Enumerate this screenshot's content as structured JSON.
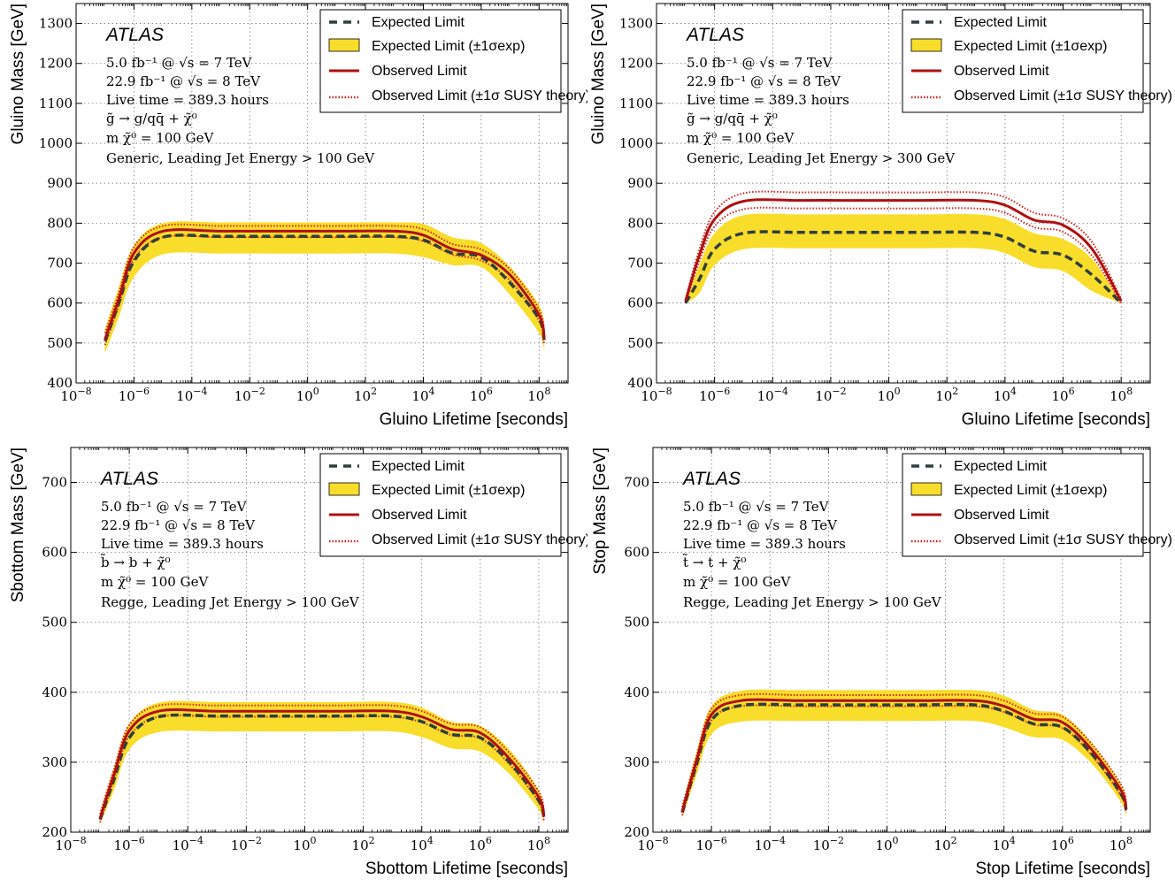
{
  "colors": {
    "band": "#f9dd2b",
    "expected": "#2f3f3f",
    "observed": "#b01010",
    "theory": "#d42020",
    "grid": "#777777"
  },
  "chart_data": [
    {
      "type": "line",
      "xscale": "log",
      "xlim": [
        1e-08,
        1000000000.0
      ],
      "ylim": [
        400,
        1350
      ],
      "xlabel": "Gluino Lifetime [seconds]",
      "ylabel": "Gluino Mass [GeV]",
      "yticks": [
        "400",
        "500",
        "600",
        "700",
        "800",
        "900",
        "1000",
        "1100",
        "1200",
        "1300"
      ],
      "ytick_values": [
        400,
        500,
        600,
        700,
        800,
        900,
        1000,
        1100,
        1200,
        1300
      ],
      "xticks": [
        "10^-8",
        "10^-6",
        "10^-4",
        "10^-2",
        "10^0",
        "10^2",
        "10^4",
        "10^6",
        "10^8"
      ],
      "grid": true,
      "legend_position": "top-right",
      "annotation": {
        "experiment": "ATLAS",
        "lumi_7": "5.0  fb⁻¹ @ √s = 7 TeV",
        "lumi_8": "22.9 fb⁻¹ @ √s = 8 TeV",
        "live_time": "Live time = 389.3 hours",
        "decay": "g̃ →  g/qq̄ + χ̃⁰",
        "lsp_mass": "m χ̃⁰ = 100 GeV",
        "model": "Generic,  Leading Jet Energy > 100 GeV"
      },
      "legend": [
        "Expected Limit",
        "Expected Limit (±1σexp)",
        "Observed Limit",
        "Observed Limit (±1σ SUSY theory)"
      ],
      "x": [
        1e-07,
        3e-07,
        1e-06,
        1e-05,
        0.001,
        0.1,
        10.0,
        1000.0,
        10000.0,
        100000.0,
        1000000.0,
        10000000.0,
        100000000.0,
        150000000.0
      ],
      "series": [
        {
          "name": "Expected Limit",
          "values": [
            505,
            600,
            705,
            765,
            767,
            767,
            767,
            767,
            758,
            725,
            715,
            650,
            560,
            505
          ]
        },
        {
          "name": "Expected Limit (±1σexp)",
          "low": [
            475,
            565,
            665,
            722,
            724,
            724,
            724,
            724,
            715,
            695,
            690,
            620,
            525,
            478
          ],
          "high": [
            535,
            640,
            745,
            800,
            802,
            802,
            802,
            802,
            798,
            765,
            750,
            690,
            595,
            535
          ]
        },
        {
          "name": "Observed Limit",
          "values": [
            510,
            610,
            725,
            780,
            780,
            780,
            780,
            780,
            770,
            735,
            720,
            670,
            570,
            510
          ]
        },
        {
          "name": "Observed Limit (±1σ SUSY theory)",
          "low": [
            495,
            595,
            710,
            765,
            765,
            765,
            765,
            765,
            755,
            722,
            706,
            656,
            556,
            495
          ],
          "high": [
            525,
            625,
            740,
            793,
            793,
            793,
            793,
            793,
            785,
            748,
            734,
            684,
            584,
            525
          ]
        }
      ]
    },
    {
      "type": "line",
      "xscale": "log",
      "xlim": [
        1e-08,
        1000000000.0
      ],
      "ylim": [
        400,
        1350
      ],
      "xlabel": "Gluino Lifetime [seconds]",
      "ylabel": "Gluino Mass [GeV]",
      "yticks": [
        "400",
        "500",
        "600",
        "700",
        "800",
        "900",
        "1000",
        "1100",
        "1200",
        "1300"
      ],
      "ytick_values": [
        400,
        500,
        600,
        700,
        800,
        900,
        1000,
        1100,
        1200,
        1300
      ],
      "xticks": [
        "10^-8",
        "10^-6",
        "10^-4",
        "10^-2",
        "10^0",
        "10^2",
        "10^4",
        "10^6",
        "10^8"
      ],
      "grid": true,
      "legend_position": "top-right",
      "annotation": {
        "experiment": "ATLAS",
        "lumi_7": "5.0  fb⁻¹ @ √s = 7 TeV",
        "lumi_8": "22.9 fb⁻¹ @ √s = 8 TeV",
        "live_time": "Live time = 389.3 hours",
        "decay": "g̃ →  g/qq̄ + χ̃⁰",
        "lsp_mass": "m χ̃⁰ = 100 GeV",
        "model": "Generic,  Leading Jet Energy > 300 GeV"
      },
      "legend": [
        "Expected Limit",
        "Expected Limit (±1σexp)",
        "Observed Limit",
        "Observed Limit (±1σ SUSY theory)"
      ],
      "x": [
        1e-07,
        3e-07,
        1e-06,
        1e-05,
        0.001,
        0.1,
        10.0,
        1000.0,
        10000.0,
        100000.0,
        1000000.0,
        10000000.0,
        100000000.0
      ],
      "series": [
        {
          "name": "Expected Limit",
          "values": [
            600,
            660,
            735,
            775,
            777,
            777,
            777,
            777,
            765,
            730,
            720,
            670,
            600
          ]
        },
        {
          "name": "Expected Limit (±1σexp)",
          "low": [
            600,
            625,
            695,
            735,
            737,
            737,
            737,
            737,
            725,
            690,
            680,
            630,
            600
          ],
          "high": [
            600,
            695,
            775,
            820,
            822,
            822,
            822,
            822,
            810,
            775,
            760,
            710,
            600
          ]
        },
        {
          "name": "Observed Limit",
          "values": [
            605,
            720,
            810,
            855,
            857,
            857,
            857,
            857,
            845,
            808,
            795,
            735,
            605
          ]
        },
        {
          "name": "Observed Limit (±1σ SUSY theory)",
          "low": [
            600,
            705,
            792,
            835,
            837,
            837,
            837,
            837,
            826,
            790,
            778,
            718,
            600
          ],
          "high": [
            610,
            735,
            828,
            875,
            877,
            877,
            877,
            877,
            865,
            826,
            812,
            752,
            610
          ]
        }
      ]
    },
    {
      "type": "line",
      "xscale": "log",
      "xlim": [
        1e-08,
        1000000000.0
      ],
      "ylim": [
        200,
        750
      ],
      "xlabel": "Sbottom Lifetime [seconds]",
      "ylabel": "Sbottom Mass [GeV]",
      "yticks": [
        "200",
        "300",
        "400",
        "500",
        "600",
        "700"
      ],
      "ytick_values": [
        200,
        300,
        400,
        500,
        600,
        700
      ],
      "xticks": [
        "10^-8",
        "10^-6",
        "10^-4",
        "10^-2",
        "10^0",
        "10^2",
        "10^4",
        "10^6",
        "10^8"
      ],
      "grid": true,
      "legend_position": "top-right",
      "annotation": {
        "experiment": "ATLAS",
        "lumi_7": "5.0  fb⁻¹ @ √s = 7 TeV",
        "lumi_8": "22.9 fb⁻¹ @ √s = 8 TeV",
        "live_time": "Live time = 389.3 hours",
        "decay": "b̃ →  b + χ̃⁰",
        "lsp_mass": "m χ̃⁰ = 100 GeV",
        "model": "Regge,  Leading Jet Energy > 100 GeV"
      },
      "legend": [
        "Expected Limit",
        "Expected Limit (±1σexp)",
        "Observed Limit",
        "Observed Limit (±1σ SUSY theory)"
      ],
      "x": [
        1e-07,
        3e-07,
        1e-06,
        1e-05,
        0.001,
        0.1,
        10.0,
        1000.0,
        10000.0,
        100000.0,
        1000000.0,
        10000000.0,
        100000000.0,
        150000000.0
      ],
      "series": [
        {
          "name": "Expected Limit",
          "values": [
            218,
            275,
            335,
            365,
            366,
            366,
            366,
            366,
            358,
            340,
            335,
            300,
            245,
            220
          ]
        },
        {
          "name": "Expected Limit (±1σexp)",
          "low": [
            212,
            260,
            318,
            343,
            344,
            344,
            344,
            344,
            336,
            320,
            315,
            283,
            232,
            212
          ],
          "high": [
            228,
            292,
            355,
            385,
            386,
            386,
            386,
            386,
            378,
            358,
            352,
            318,
            260,
            228
          ]
        },
        {
          "name": "Observed Limit",
          "values": [
            220,
            282,
            345,
            373,
            373,
            373,
            373,
            373,
            365,
            347,
            342,
            305,
            250,
            222
          ]
        },
        {
          "name": "Observed Limit (±1σ SUSY theory)",
          "low": [
            214,
            275,
            337,
            365,
            365,
            365,
            365,
            365,
            357,
            339,
            334,
            297,
            243,
            215
          ],
          "high": [
            226,
            290,
            353,
            381,
            381,
            381,
            381,
            381,
            373,
            355,
            350,
            313,
            258,
            229
          ]
        }
      ]
    },
    {
      "type": "line",
      "xscale": "log",
      "xlim": [
        1e-08,
        1000000000.0
      ],
      "ylim": [
        200,
        750
      ],
      "xlabel": "Stop Lifetime [seconds]",
      "ylabel": "Stop Mass [GeV]",
      "yticks": [
        "200",
        "300",
        "400",
        "500",
        "600",
        "700"
      ],
      "ytick_values": [
        200,
        300,
        400,
        500,
        600,
        700
      ],
      "xticks": [
        "10^-8",
        "10^-6",
        "10^-4",
        "10^-2",
        "10^0",
        "10^2",
        "10^4",
        "10^6",
        "10^8"
      ],
      "grid": true,
      "legend_position": "top-right",
      "annotation": {
        "experiment": "ATLAS",
        "lumi_7": "5.0  fb⁻¹ @ √s = 7 TeV",
        "lumi_8": "22.9 fb⁻¹ @ √s = 8 TeV",
        "live_time": "Live time = 389.3 hours",
        "decay": "t̃ →  t + χ̃⁰",
        "lsp_mass": "m χ̃⁰ = 100 GeV",
        "model": "Regge,  Leading Jet Energy > 100 GeV"
      },
      "legend": [
        "Expected Limit",
        "Expected Limit (±1σexp)",
        "Observed Limit",
        "Observed Limit (±1σ SUSY theory)"
      ],
      "x": [
        1e-07,
        3e-07,
        1e-06,
        1e-05,
        0.001,
        0.1,
        10.0,
        1000.0,
        10000.0,
        100000.0,
        1000000.0,
        10000000.0,
        100000000.0,
        150000000.0
      ],
      "series": [
        {
          "name": "Expected Limit",
          "values": [
            228,
            295,
            360,
            381,
            382,
            382,
            382,
            382,
            373,
            355,
            350,
            312,
            255,
            232
          ]
        },
        {
          "name": "Expected Limit (±1σexp)",
          "low": [
            220,
            280,
            340,
            358,
            359,
            359,
            359,
            359,
            350,
            336,
            332,
            298,
            243,
            222
          ],
          "high": [
            238,
            312,
            380,
            402,
            403,
            403,
            403,
            403,
            395,
            375,
            368,
            328,
            268,
            240
          ]
        },
        {
          "name": "Observed Limit",
          "values": [
            230,
            300,
            368,
            388,
            388,
            388,
            388,
            388,
            380,
            362,
            357,
            318,
            260,
            235
          ]
        },
        {
          "name": "Observed Limit (±1σ SUSY theory)",
          "low": [
            224,
            293,
            360,
            380,
            380,
            380,
            380,
            380,
            372,
            354,
            349,
            310,
            252,
            228
          ],
          "high": [
            236,
            307,
            376,
            396,
            396,
            396,
            396,
            396,
            388,
            370,
            365,
            326,
            268,
            242
          ]
        }
      ]
    }
  ]
}
